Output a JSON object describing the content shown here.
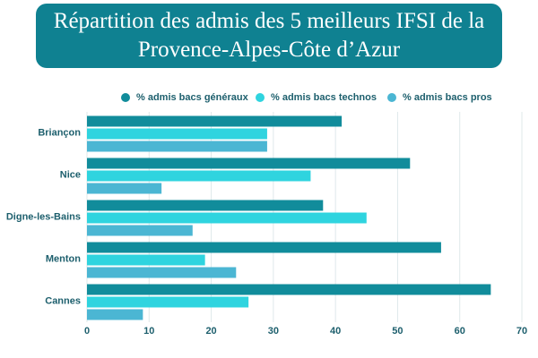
{
  "chart_data": {
    "type": "bar",
    "orientation": "horizontal",
    "title": "Répartition des admis des 5 meilleurs IFSI de la Provence-Alpes-Côte d’Azur",
    "categories": [
      "Briançon",
      "Nice",
      "Digne-les-Bains",
      "Menton",
      "Cannes"
    ],
    "series": [
      {
        "name": "% admis bacs généraux",
        "color": "#118c9b",
        "values": [
          41,
          52,
          38,
          57,
          65
        ]
      },
      {
        "name": "% admis bacs technos",
        "color": "#2fd4df",
        "values": [
          29,
          36,
          45,
          19,
          26
        ]
      },
      {
        "name": "% admis bacs pros",
        "color": "#4bb6d3",
        "values": [
          29,
          12,
          17,
          24,
          9
        ]
      }
    ],
    "xlim": [
      0,
      70
    ],
    "xticks": [
      0,
      10,
      20,
      30,
      40,
      50,
      60,
      70
    ],
    "grid": true
  }
}
